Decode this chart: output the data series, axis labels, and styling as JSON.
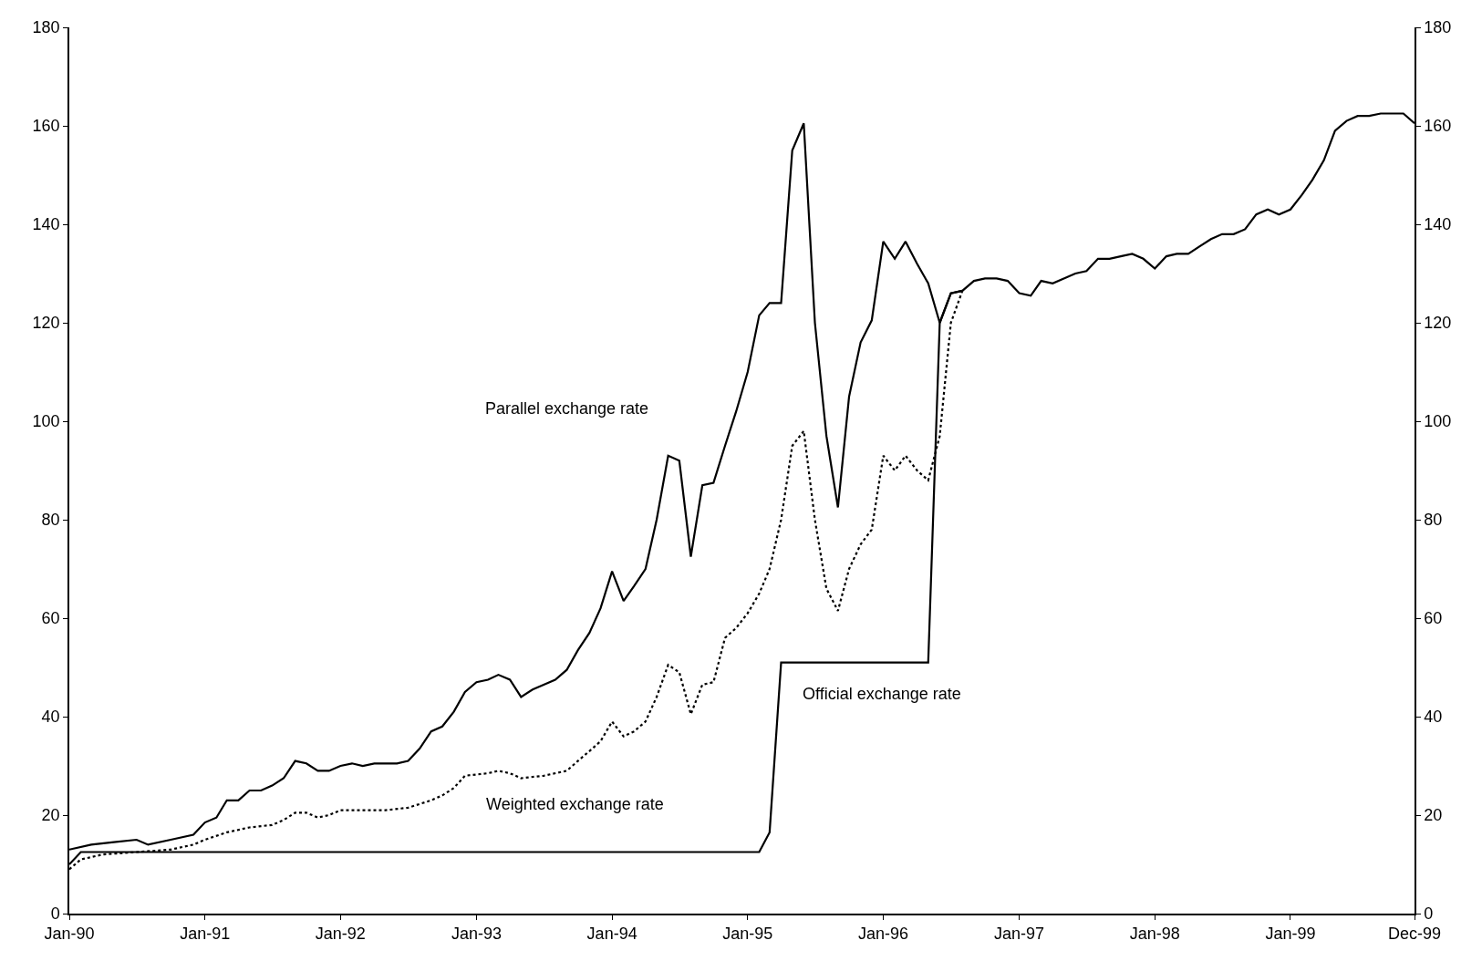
{
  "chart_data": {
    "type": "line",
    "xlim": [
      "1990-01-01",
      "1999-12-01"
    ],
    "xticks": [
      {
        "value": "1990-01",
        "label": "Jan-90"
      },
      {
        "value": "1991-01",
        "label": "Jan-91"
      },
      {
        "value": "1992-01",
        "label": "Jan-92"
      },
      {
        "value": "1993-01",
        "label": "Jan-93"
      },
      {
        "value": "1994-01",
        "label": "Jan-94"
      },
      {
        "value": "1995-01",
        "label": "Jan-95"
      },
      {
        "value": "1996-01",
        "label": "Jan-96"
      },
      {
        "value": "1997-01",
        "label": "Jan-97"
      },
      {
        "value": "1998-01",
        "label": "Jan-98"
      },
      {
        "value": "1999-01",
        "label": "Jan-99"
      },
      {
        "value": "1999-12",
        "label": "Dec-99"
      }
    ],
    "ylim": [
      0,
      180
    ],
    "yticks": [
      0,
      20,
      40,
      60,
      80,
      100,
      120,
      140,
      160,
      180
    ],
    "y2lim": [
      0,
      180
    ],
    "y2ticks": [
      0,
      20,
      40,
      60,
      80,
      100,
      120,
      140,
      160,
      180
    ],
    "legend": false,
    "marker": "none",
    "series": [
      {
        "name": "Parallel exchange rate",
        "color": "#000000",
        "line_style": "solid",
        "x": [
          "1990-01",
          "1990-03",
          "1990-05",
          "1990-07",
          "1990-08",
          "1990-10",
          "1990-12",
          "1991-01",
          "1991-02",
          "1991-03",
          "1991-04",
          "1991-05",
          "1991-06",
          "1991-07",
          "1991-08",
          "1991-09",
          "1991-10",
          "1991-11",
          "1991-12",
          "1992-01",
          "1992-02",
          "1992-03",
          "1992-04",
          "1992-06",
          "1992-07",
          "1992-08",
          "1992-09",
          "1992-10",
          "1992-11",
          "1992-12",
          "1993-01",
          "1993-02",
          "1993-03",
          "1993-04",
          "1993-05",
          "1993-06",
          "1993-07",
          "1993-08",
          "1993-09",
          "1993-10",
          "1993-11",
          "1993-12",
          "1994-01",
          "1994-02",
          "1994-03",
          "1994-04",
          "1994-05",
          "1994-06",
          "1994-07",
          "1994-08",
          "1994-09",
          "1994-10",
          "1994-11",
          "1994-12",
          "1995-01",
          "1995-02",
          "1995-03",
          "1995-04",
          "1995-05",
          "1995-06",
          "1995-07",
          "1995-08",
          "1995-09",
          "1995-10",
          "1995-11",
          "1995-12",
          "1996-01",
          "1996-02",
          "1996-03",
          "1996-04",
          "1996-05",
          "1996-06",
          "1996-07",
          "1996-08",
          "1996-09",
          "1996-10",
          "1996-11",
          "1996-12",
          "1997-01",
          "1997-02",
          "1997-03",
          "1997-04",
          "1997-05",
          "1997-06",
          "1997-07",
          "1997-08",
          "1997-09",
          "1997-10",
          "1997-11",
          "1997-12",
          "1998-01",
          "1998-02",
          "1998-03",
          "1998-04",
          "1998-05",
          "1998-06",
          "1998-07",
          "1998-08",
          "1998-09",
          "1998-10",
          "1998-11",
          "1998-12",
          "1999-01",
          "1999-02",
          "1999-03",
          "1999-04",
          "1999-05",
          "1999-06",
          "1999-07",
          "1999-08",
          "1999-09",
          "1999-10",
          "1999-11",
          "1999-12"
        ],
        "values": [
          13,
          14,
          14.5,
          15,
          14,
          15,
          16,
          18.5,
          19.5,
          23,
          23,
          25,
          25,
          26,
          27.5,
          31,
          30.5,
          29,
          29,
          30,
          30.5,
          30,
          30.5,
          30.5,
          31,
          33.5,
          37,
          38,
          41,
          45,
          47,
          47.5,
          48.5,
          47.5,
          44,
          45.5,
          46.5,
          47.5,
          49.5,
          53.5,
          57,
          62,
          69.5,
          63.5,
          66.5,
          70,
          80,
          93,
          92,
          72.5,
          87,
          87.5,
          95,
          102,
          110,
          121.5,
          124,
          124,
          155,
          160.5,
          120,
          97,
          82.5,
          105,
          116,
          120.5,
          136.5,
          133,
          136.5,
          132,
          128,
          120,
          126,
          126.5,
          128.5,
          129,
          129,
          128.5,
          126,
          125.5,
          128.5,
          128,
          129,
          130,
          130.5,
          133,
          133,
          133.5,
          134,
          133,
          131,
          133.5,
          134,
          134,
          135.5,
          137,
          138,
          138,
          139,
          142,
          143,
          142,
          143,
          146,
          149,
          153,
          159,
          161,
          162,
          162,
          162.5,
          162.5,
          162.5,
          160.5
        ]
      },
      {
        "name": "Official exchange rate",
        "color": "#000000",
        "line_style": "solid",
        "x": [
          "1990-01",
          "1990-02",
          "1995-02",
          "1995-03",
          "1995-04",
          "1996-05",
          "1996-06",
          "1996-07",
          "1996-08"
        ],
        "values": [
          10,
          12.5,
          12.5,
          16.5,
          51,
          51,
          120,
          126,
          126.5
        ]
      },
      {
        "name": "Weighted exchange rate",
        "color": "#000000",
        "line_style": "dotted",
        "x": [
          "1990-01",
          "1990-02",
          "1990-04",
          "1990-07",
          "1990-10",
          "1990-12",
          "1991-01",
          "1991-03",
          "1991-05",
          "1991-07",
          "1991-08",
          "1991-09",
          "1991-10",
          "1991-11",
          "1991-12",
          "1992-01",
          "1992-03",
          "1992-05",
          "1992-07",
          "1992-09",
          "1992-10",
          "1992-11",
          "1992-12",
          "1993-02",
          "1993-03",
          "1993-04",
          "1993-05",
          "1993-07",
          "1993-09",
          "1993-10",
          "1993-11",
          "1993-12",
          "1994-01",
          "1994-02",
          "1994-03",
          "1994-04",
          "1994-05",
          "1994-06",
          "1994-07",
          "1994-08",
          "1994-09",
          "1994-10",
          "1994-11",
          "1994-12",
          "1995-01",
          "1995-02",
          "1995-03",
          "1995-04",
          "1995-05",
          "1995-06",
          "1995-07",
          "1995-08",
          "1995-09",
          "1995-10",
          "1995-11",
          "1995-12",
          "1996-01",
          "1996-02",
          "1996-03",
          "1996-04",
          "1996-05",
          "1996-06",
          "1996-07",
          "1996-08"
        ],
        "values": [
          9,
          11,
          12,
          12.5,
          13,
          14,
          15,
          16.5,
          17.5,
          18,
          19,
          20.5,
          20.5,
          19.5,
          20,
          21,
          21,
          21,
          21.5,
          23,
          24,
          25.5,
          28,
          28.5,
          29,
          28.5,
          27.5,
          28,
          29,
          31,
          33,
          35,
          39,
          36,
          37,
          39,
          44,
          50.5,
          49,
          40.5,
          46.5,
          47,
          56,
          58,
          61,
          65,
          70,
          80,
          95,
          98,
          80,
          66,
          61.5,
          70,
          75,
          78,
          93,
          90,
          93,
          90,
          88,
          97,
          120,
          126.5
        ]
      }
    ]
  }
}
